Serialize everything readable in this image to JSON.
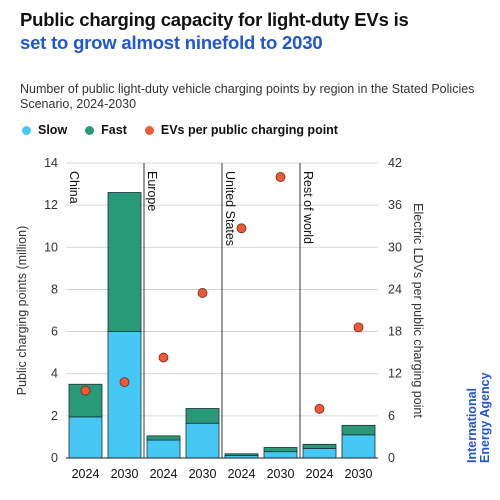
{
  "colors": {
    "title_accent": "#1f56d4",
    "slow": "#46c8f5",
    "fast": "#2a9977",
    "dot": "#ee5a37",
    "dot_stroke": "#6b2a14",
    "bar_stroke": "#1c2f3a",
    "grid": "#cccccc",
    "divider": "#222222",
    "brand": "#1f56d4"
  },
  "brand": {
    "line1": "International",
    "line2": "Energy Agency"
  },
  "chart_data": {
    "type": "bar",
    "stacked": true,
    "title_line1": "Public charging capacity for light-duty EVs is",
    "title_line2": "set to grow almost ninefold to 2030",
    "subtitle": "Number of public light-duty vehicle charging points by region in the Stated Policies Scenario, 2024-2030",
    "ylabel": "Public charging points (million)",
    "y2label": "Electric LDVs per public charging point",
    "ylim": [
      0,
      14
    ],
    "yticks": [
      0,
      2,
      4,
      6,
      8,
      10,
      12,
      14
    ],
    "y2lim": [
      0,
      42
    ],
    "y2ticks": [
      0,
      6,
      12,
      18,
      24,
      30,
      36,
      42
    ],
    "grid": true,
    "legend_position": "top-left",
    "legend": [
      "Slow",
      "Fast",
      "EVs per public charging point"
    ],
    "regions": [
      "China",
      "Europe",
      "United States",
      "Rest of world"
    ],
    "categories": [
      "2024",
      "2030",
      "2024",
      "2030",
      "2024",
      "2030",
      "2024",
      "2030"
    ],
    "series": [
      {
        "name": "Slow",
        "values": [
          1.95,
          6.0,
          0.85,
          1.65,
          0.12,
          0.3,
          0.45,
          1.1
        ]
      },
      {
        "name": "Fast",
        "values": [
          1.55,
          6.6,
          0.2,
          0.7,
          0.08,
          0.2,
          0.2,
          0.45
        ]
      }
    ],
    "secondary_series": {
      "name": "EVs per public charging point",
      "axis": "right",
      "values": [
        9.6,
        10.8,
        14.3,
        23.5,
        32.7,
        40.0,
        7.0,
        18.6
      ]
    }
  }
}
